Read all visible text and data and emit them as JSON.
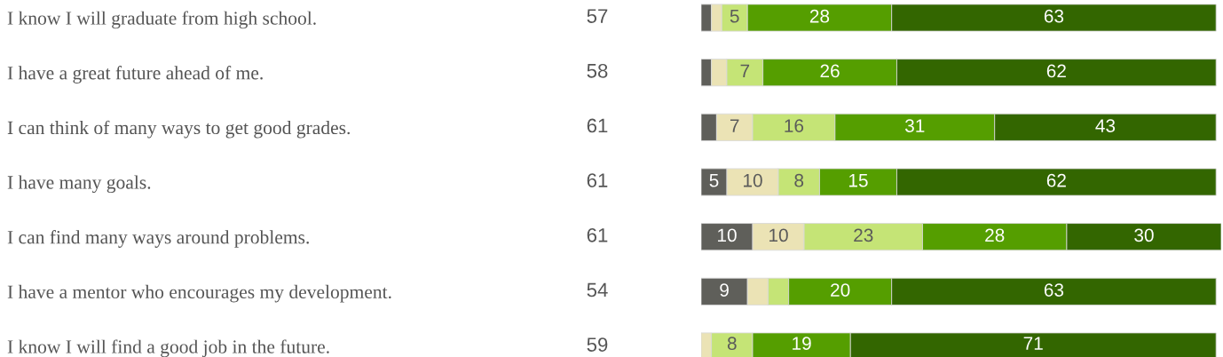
{
  "chart_data": {
    "type": "bar",
    "orientation": "horizontal",
    "stacked": true,
    "categories": [
      "I know I will graduate from high school.",
      "I have a great future ahead of me.",
      "I can think of many ways to get good grades.",
      "I have many goals.",
      "I can find many ways around problems.",
      "I have a mentor who encourages my development.",
      "I know I will find a good job in the future."
    ],
    "series": [
      {
        "color": "#5f5f5a",
        "values": [
          2,
          2,
          3,
          5,
          10,
          9,
          0
        ],
        "value_labels": [
          null,
          null,
          null,
          "5",
          "10",
          "9",
          null
        ]
      },
      {
        "color": "#ebe3b5",
        "values": [
          2,
          3,
          7,
          10,
          10,
          4,
          2
        ],
        "value_labels": [
          null,
          null,
          "7",
          "10",
          "10",
          null,
          null
        ]
      },
      {
        "color": "#c5e476",
        "values": [
          5,
          7,
          16,
          8,
          23,
          4,
          8
        ],
        "value_labels": [
          "5",
          "7",
          "16",
          "8",
          "23",
          null,
          "8"
        ]
      },
      {
        "color": "#559e00",
        "values": [
          28,
          26,
          31,
          15,
          28,
          20,
          19
        ],
        "value_labels": [
          "28",
          "26",
          "31",
          "15",
          "28",
          "20",
          "19"
        ]
      },
      {
        "color": "#336600",
        "values": [
          63,
          62,
          43,
          62,
          30,
          63,
          71
        ],
        "value_labels": [
          "63",
          "62",
          "43",
          "62",
          "30",
          "63",
          "71"
        ]
      }
    ],
    "annotations": [
      "57",
      "58",
      "61",
      "61",
      "61",
      "54",
      "59"
    ],
    "xlim": [
      0,
      101
    ],
    "tick_labels": "y",
    "grid": false,
    "legend": false
  }
}
